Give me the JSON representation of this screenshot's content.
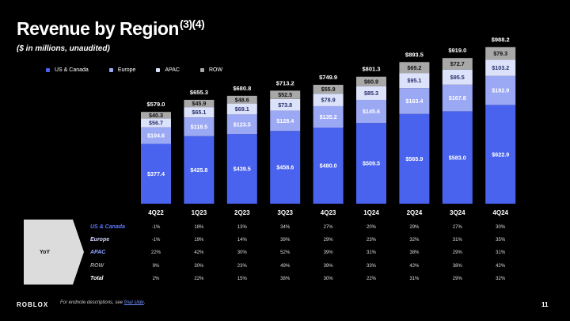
{
  "header": {
    "title": "Revenue by Region",
    "title_sup": "(3)(4)",
    "subtitle": "($ in millions, unaudited)"
  },
  "colors": {
    "us": "#4a63ee",
    "europe": "#9ba8f4",
    "apac": "#dde2fb",
    "row": "#a8a8a8"
  },
  "chart_data": {
    "type": "bar",
    "stacked": true,
    "title": "Revenue by Region",
    "ylabel": "$ in millions, unaudited",
    "categories": [
      "4Q22",
      "1Q23",
      "2Q23",
      "3Q23",
      "4Q23",
      "1Q24",
      "2Q24",
      "3Q24",
      "4Q24"
    ],
    "series": [
      {
        "name": "US & Canada",
        "values": [
          377.4,
          425.8,
          439.5,
          458.6,
          480.0,
          509.5,
          565.9,
          583.0,
          622.9
        ],
        "labels": [
          "$377.4",
          "$425.8",
          "$439.5",
          "$458.6",
          "$480.0",
          "$509.5",
          "$565.9",
          "$583.0",
          "$622.9"
        ]
      },
      {
        "name": "Europe",
        "values": [
          104.6,
          118.5,
          123.5,
          128.4,
          135.2,
          145.6,
          163.4,
          167.8,
          182.9
        ],
        "labels": [
          "$104.6",
          "$118.5",
          "$123.5",
          "$128.4",
          "$135.2",
          "$145.6",
          "$163.4",
          "$167.8",
          "$182.9"
        ]
      },
      {
        "name": "APAC",
        "values": [
          56.7,
          65.1,
          69.1,
          73.8,
          78.9,
          85.3,
          95.1,
          95.5,
          103.2
        ],
        "labels": [
          "$56.7",
          "$65.1",
          "$69.1",
          "$73.8",
          "$78.9",
          "$85.3",
          "$95.1",
          "$95.5",
          "$103.2"
        ]
      },
      {
        "name": "ROW",
        "values": [
          40.3,
          45.9,
          48.6,
          52.5,
          55.9,
          60.9,
          69.2,
          72.7,
          79.3
        ],
        "labels": [
          "$40.3",
          "$45.9",
          "$48.6",
          "$52.5",
          "$55.9",
          "$60.9",
          "$69.2",
          "$72.7",
          "$79.3"
        ]
      }
    ],
    "totals": [
      579.0,
      655.3,
      680.8,
      713.2,
      749.9,
      801.3,
      893.5,
      919.0,
      988.2
    ],
    "total_labels": [
      "$579.0",
      "$655.3",
      "$680.8",
      "$713.2",
      "$749.9",
      "$801.3",
      "$893.5",
      "$919.0",
      "$988.2"
    ],
    "legend": [
      "US & Canada",
      "Europe",
      "APAC",
      "ROW"
    ],
    "legend_position": "top-left",
    "grid": false
  },
  "yoy_table": {
    "label": "YoY",
    "rows": [
      {
        "name": "US & Canada",
        "values": [
          "-1%",
          "18%",
          "13%",
          "34%",
          "27%",
          "20%",
          "29%",
          "27%",
          "30%"
        ]
      },
      {
        "name": "Europe",
        "values": [
          "-1%",
          "19%",
          "14%",
          "39%",
          "29%",
          "23%",
          "32%",
          "31%",
          "35%"
        ]
      },
      {
        "name": "APAC",
        "values": [
          "22%",
          "42%",
          "30%",
          "52%",
          "39%",
          "31%",
          "38%",
          "29%",
          "31%"
        ]
      },
      {
        "name": "ROW",
        "values": [
          "9%",
          "30%",
          "23%",
          "49%",
          "39%",
          "33%",
          "42%",
          "38%",
          "42%"
        ]
      },
      {
        "name": "Total",
        "values": [
          "2%",
          "22%",
          "15%",
          "38%",
          "30%",
          "22%",
          "31%",
          "29%",
          "32%"
        ]
      }
    ]
  },
  "footer": {
    "logo": "ROBLOX",
    "note_prefix": "For endnote descriptions, see",
    "note_link": "final slide",
    "note_suffix": ".",
    "page": "11"
  }
}
